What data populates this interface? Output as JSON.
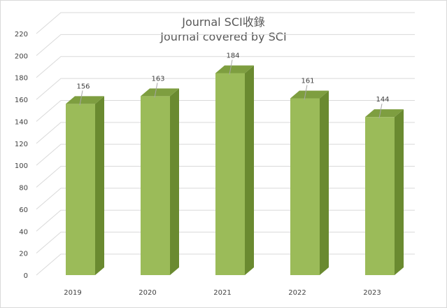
{
  "chart_data": {
    "type": "bar",
    "title": "Journal SCI收錄",
    "subtitle": "Journal covered by SCI",
    "categories": [
      "2019",
      "2020",
      "2021",
      "2022",
      "2023"
    ],
    "values": [
      156,
      163,
      184,
      161,
      144
    ],
    "ylim": [
      0,
      220
    ],
    "yticks": [
      "0",
      "20",
      "40",
      "60",
      "80",
      "100",
      "120",
      "140",
      "160",
      "180",
      "200",
      "220"
    ],
    "grid": true,
    "bar_colors": {
      "front": "#9bbb59",
      "side": "#6a8a30",
      "top": "#7e9e40"
    }
  }
}
